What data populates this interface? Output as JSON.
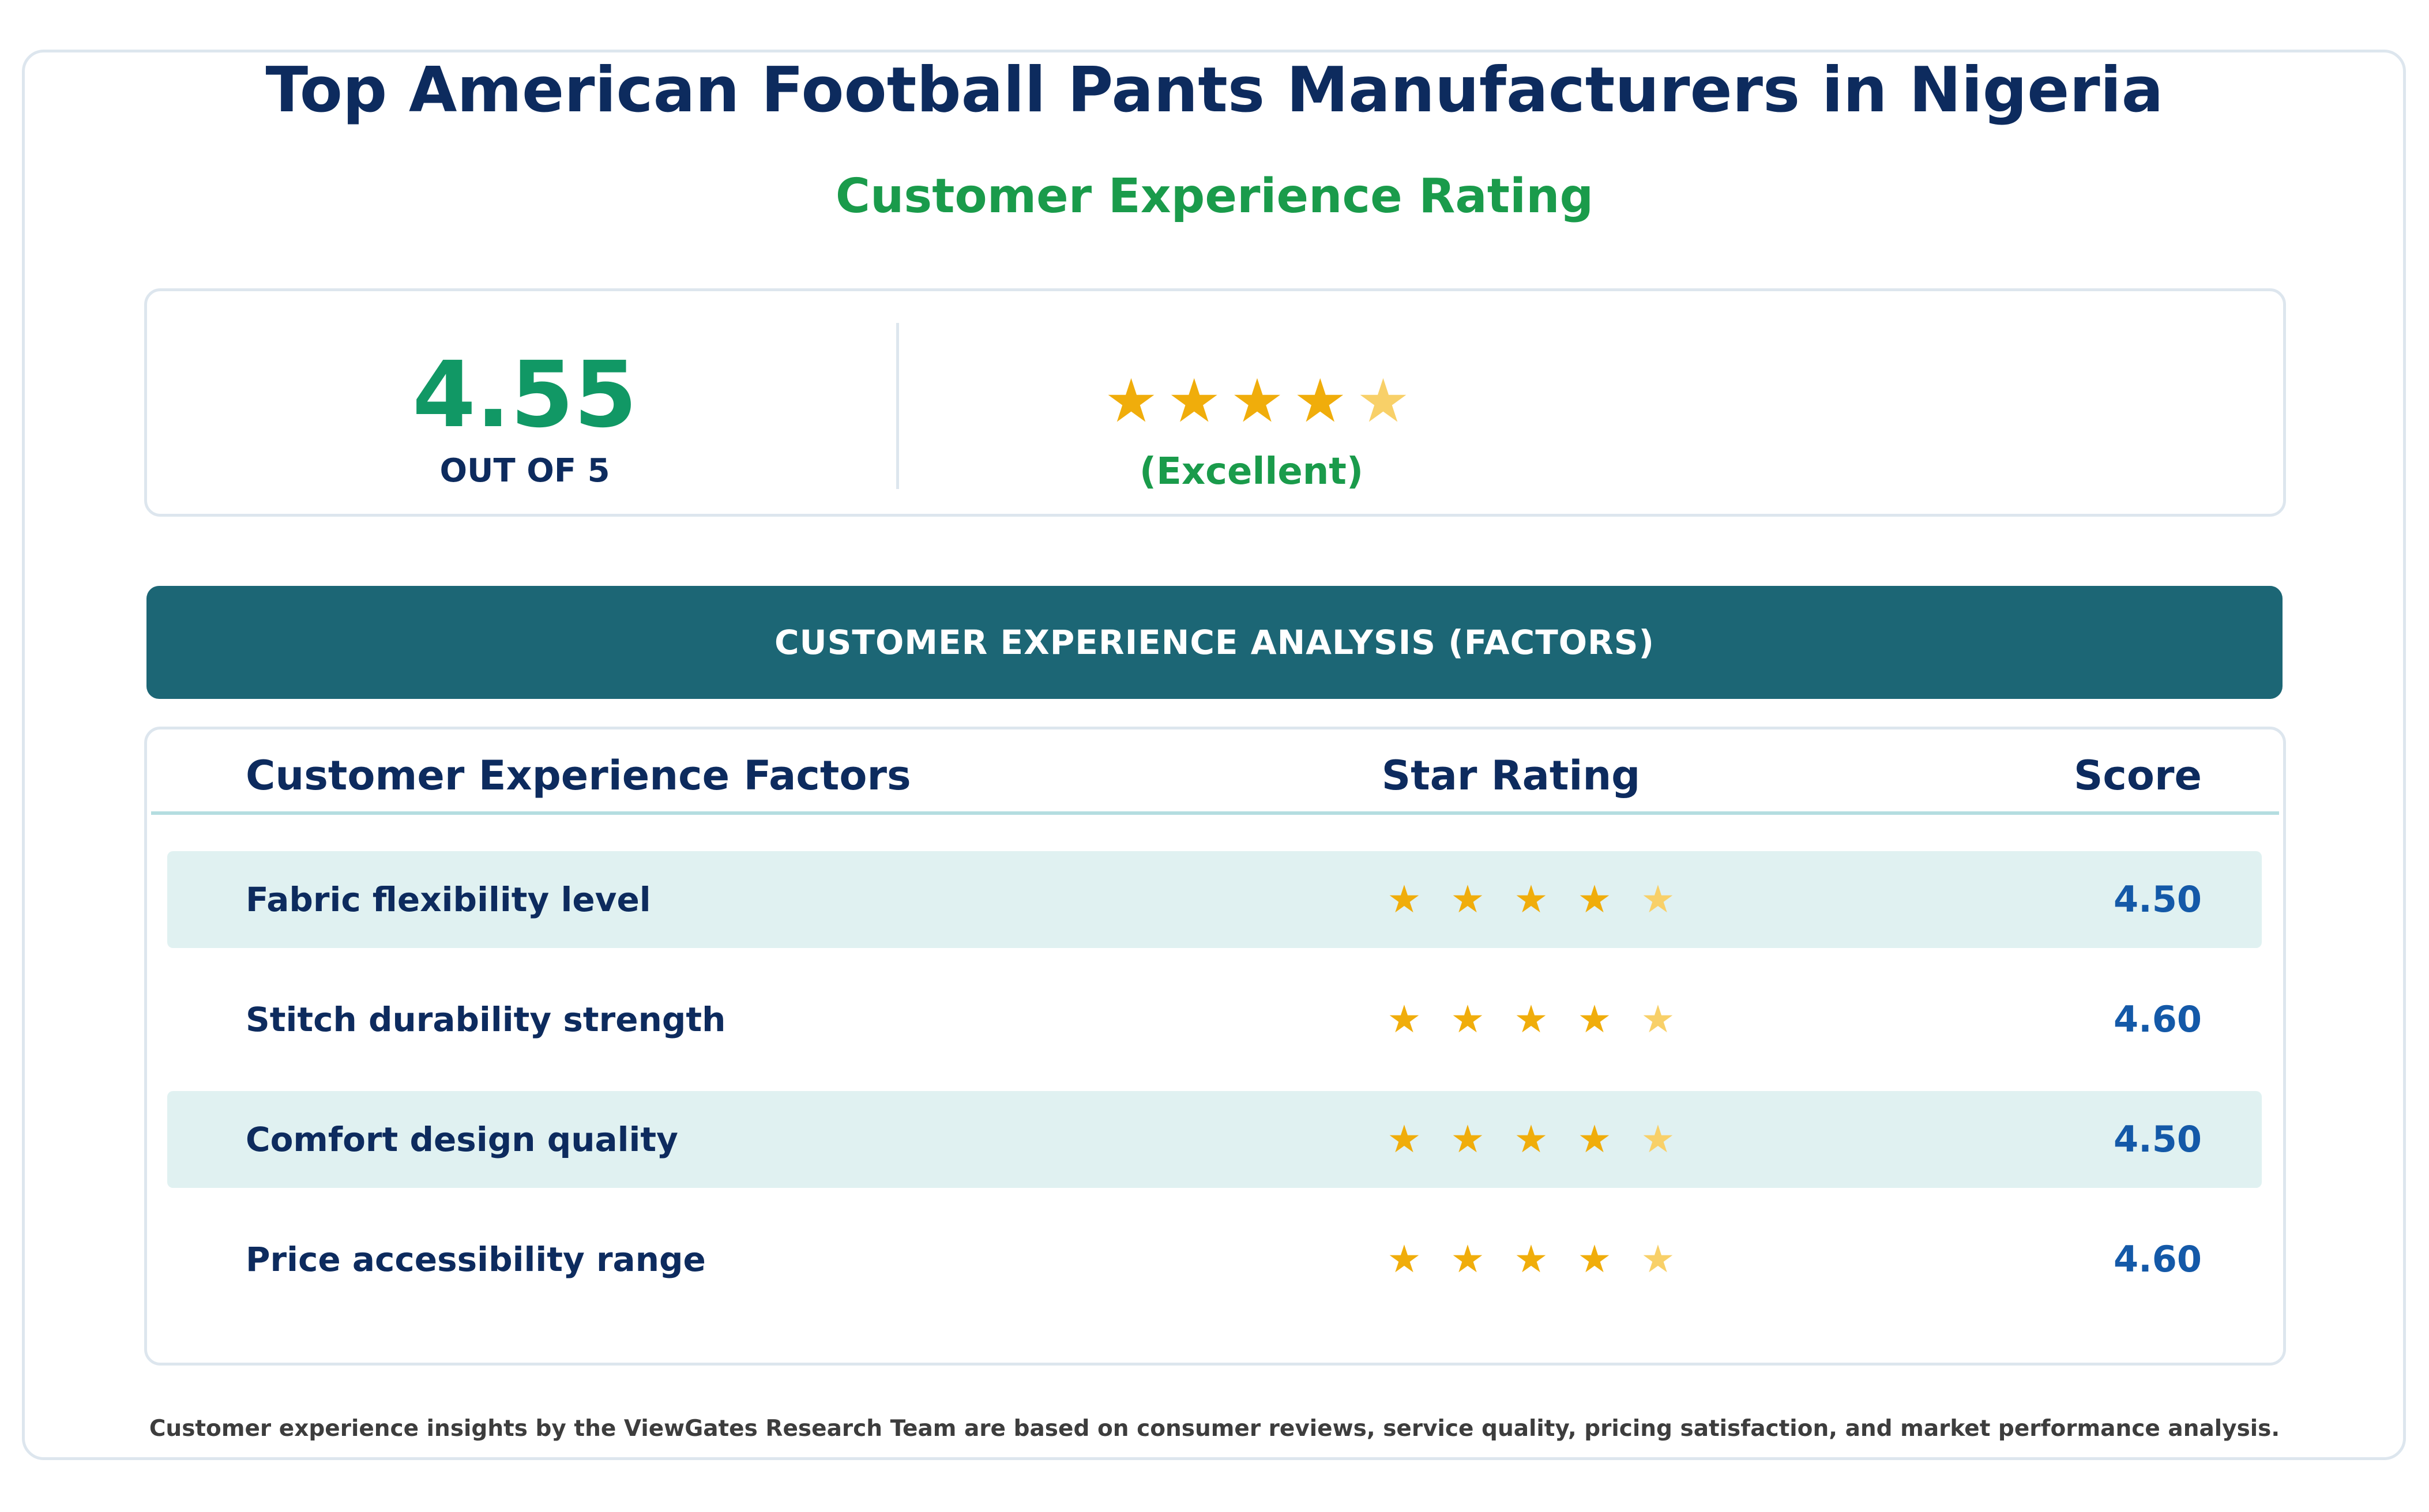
{
  "title": "Top American Football Pants Manufacturers in Nigeria",
  "subtitle": "Customer Experience Rating",
  "summary": {
    "score": "4.55",
    "out_of": "OUT OF 5",
    "rating_value": 4.55,
    "rating_label": "(Excellent)"
  },
  "banner": "CUSTOMER EXPERIENCE ANALYSIS (FACTORS)",
  "table": {
    "headers": {
      "factor": "Customer Experience Factors",
      "stars": "Star Rating",
      "score": "Score"
    },
    "rows": [
      {
        "factor": "Fabric flexibility level",
        "rating": 4.5,
        "score": "4.50"
      },
      {
        "factor": "Stitch durability strength",
        "rating": 4.6,
        "score": "4.60"
      },
      {
        "factor": "Comfort design quality",
        "rating": 4.5,
        "score": "4.50"
      },
      {
        "factor": "Price accessibility range",
        "rating": 4.6,
        "score": "4.60"
      }
    ]
  },
  "footnote": "Customer experience insights by the ViewGates Research Team are based on consumer reviews, service quality, pricing satisfaction, and market performance analysis.",
  "colors": {
    "title": "#0d2b5e",
    "accent_green": "#1a9b4b",
    "banner": "#1c6675",
    "star_full": "#f0ad0b",
    "star_partial": "#f8d068",
    "score_blue": "#1459a8",
    "row_shade": "#e0f1f1"
  },
  "icons": {
    "star": "star-icon"
  }
}
